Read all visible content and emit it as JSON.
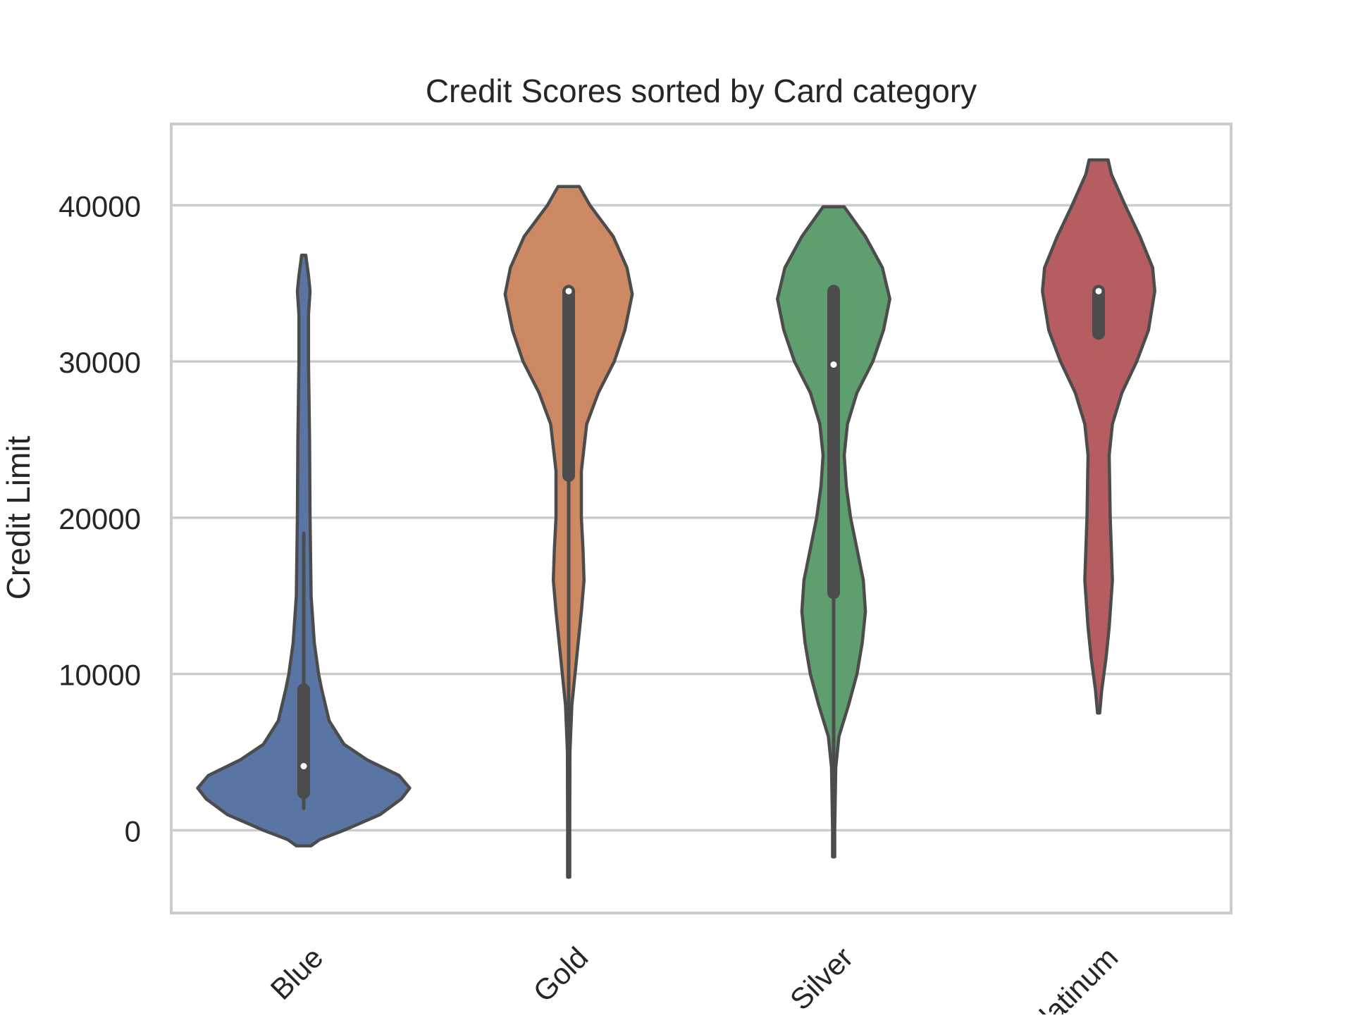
{
  "chart_data": {
    "type": "violin",
    "title": "Credit Scores sorted by Card category",
    "xlabel": "",
    "ylabel": "Credit Limit",
    "ylim": [
      -5300,
      45200
    ],
    "yticks": [
      0,
      10000,
      20000,
      30000,
      40000
    ],
    "ytick_labels": [
      "0",
      "10000",
      "20000",
      "30000",
      "40000"
    ],
    "grid": "horizontal",
    "legend": "none",
    "categories": [
      "Blue",
      "Gold",
      "Silver",
      "Platinum"
    ],
    "colors": [
      "#5975a4",
      "#cc8963",
      "#5f9e6e",
      "#b55d60"
    ],
    "edge_color": "#4c4c4c",
    "series": [
      {
        "name": "Blue",
        "range": [
          -1000,
          36800
        ],
        "box": {
          "q1": 2400,
          "median": 4100,
          "q3": 9000,
          "whisker_low": 1400,
          "whisker_high": 19000
        },
        "density_profile": [
          [
            -1000,
            0.07
          ],
          [
            -600,
            0.15
          ],
          [
            0,
            0.38
          ],
          [
            1000,
            0.72
          ],
          [
            2000,
            0.92
          ],
          [
            2700,
            1.0
          ],
          [
            3500,
            0.9
          ],
          [
            4500,
            0.6
          ],
          [
            5500,
            0.38
          ],
          [
            7000,
            0.24
          ],
          [
            9000,
            0.17
          ],
          [
            10000,
            0.14
          ],
          [
            12000,
            0.1
          ],
          [
            15000,
            0.07
          ],
          [
            20000,
            0.06
          ],
          [
            25000,
            0.055
          ],
          [
            30000,
            0.045
          ],
          [
            33000,
            0.045
          ],
          [
            34500,
            0.06
          ],
          [
            35500,
            0.045
          ],
          [
            36500,
            0.025
          ],
          [
            36800,
            0.02
          ]
        ]
      },
      {
        "name": "Gold",
        "range": [
          -3000,
          41200
        ],
        "box": {
          "q1": 22700,
          "median": 34500,
          "q3": 34500,
          "whisker_low": -3000,
          "whisker_high": 34500
        },
        "density_profile": [
          [
            -3000,
            0.01
          ],
          [
            0,
            0.01
          ],
          [
            5000,
            0.012
          ],
          [
            8000,
            0.03
          ],
          [
            10000,
            0.06
          ],
          [
            12000,
            0.09
          ],
          [
            14000,
            0.12
          ],
          [
            16000,
            0.145
          ],
          [
            18000,
            0.135
          ],
          [
            20000,
            0.12
          ],
          [
            23000,
            0.12
          ],
          [
            26000,
            0.17
          ],
          [
            28000,
            0.28
          ],
          [
            30000,
            0.43
          ],
          [
            32000,
            0.53
          ],
          [
            34300,
            0.6
          ],
          [
            36000,
            0.55
          ],
          [
            38000,
            0.42
          ],
          [
            40000,
            0.2
          ],
          [
            41200,
            0.1
          ]
        ]
      },
      {
        "name": "Silver",
        "range": [
          -1700,
          39900
        ],
        "box": {
          "q1": 15200,
          "median": 29800,
          "q3": 34500,
          "whisker_low": -1700,
          "whisker_high": 34500
        },
        "density_profile": [
          [
            -1700,
            0.01
          ],
          [
            0,
            0.01
          ],
          [
            4000,
            0.02
          ],
          [
            6000,
            0.05
          ],
          [
            8000,
            0.14
          ],
          [
            10000,
            0.22
          ],
          [
            12000,
            0.27
          ],
          [
            14000,
            0.3
          ],
          [
            16000,
            0.28
          ],
          [
            18000,
            0.22
          ],
          [
            20000,
            0.16
          ],
          [
            22000,
            0.12
          ],
          [
            24000,
            0.1
          ],
          [
            26000,
            0.13
          ],
          [
            28000,
            0.22
          ],
          [
            30000,
            0.37
          ],
          [
            32000,
            0.47
          ],
          [
            34000,
            0.53
          ],
          [
            36000,
            0.46
          ],
          [
            38000,
            0.3
          ],
          [
            39900,
            0.1
          ]
        ]
      },
      {
        "name": "Platinum",
        "range": [
          7500,
          42900
        ],
        "box": {
          "q1": 31800,
          "median": 34500,
          "q3": 34500,
          "whisker_low": 31800,
          "whisker_high": 34500
        },
        "density_profile": [
          [
            7500,
            0.01
          ],
          [
            9000,
            0.03
          ],
          [
            11000,
            0.07
          ],
          [
            13000,
            0.1
          ],
          [
            16000,
            0.13
          ],
          [
            20000,
            0.11
          ],
          [
            24000,
            0.1
          ],
          [
            26000,
            0.13
          ],
          [
            28000,
            0.22
          ],
          [
            30000,
            0.36
          ],
          [
            32000,
            0.47
          ],
          [
            34500,
            0.53
          ],
          [
            36000,
            0.51
          ],
          [
            38000,
            0.39
          ],
          [
            40000,
            0.25
          ],
          [
            42000,
            0.12
          ],
          [
            42900,
            0.09
          ]
        ]
      }
    ]
  }
}
